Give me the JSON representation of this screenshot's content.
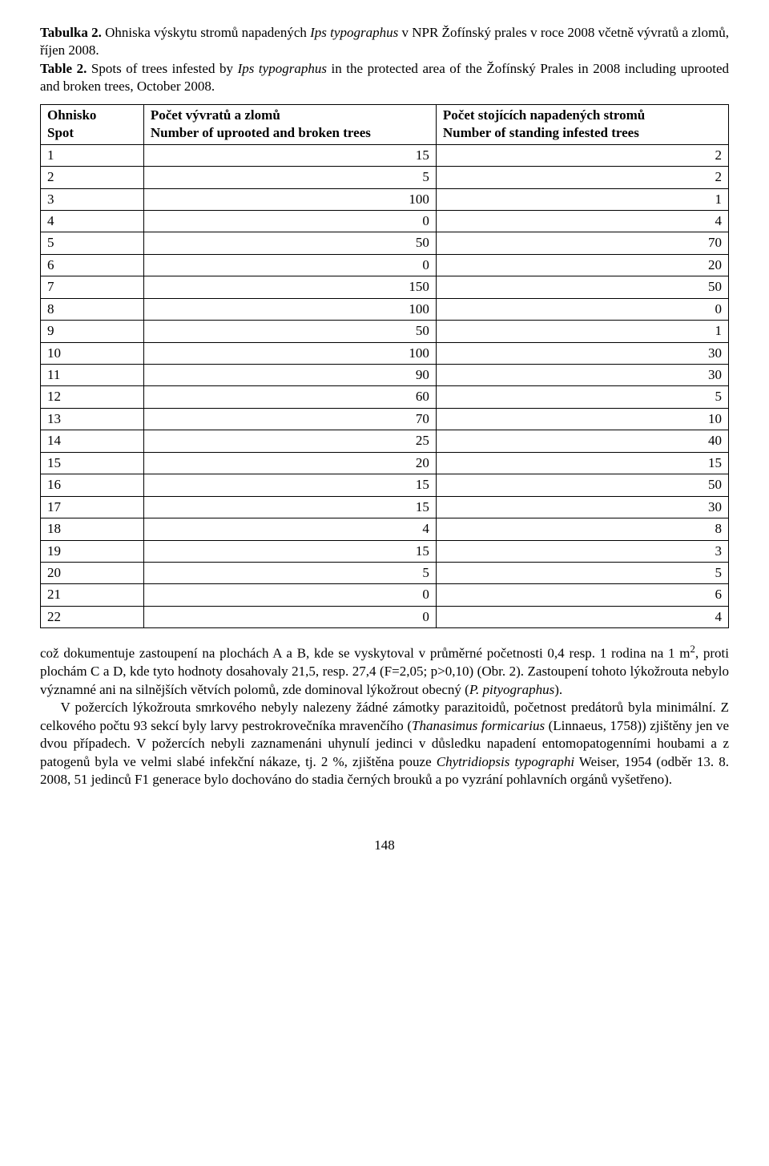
{
  "caption": {
    "cz_label": "Tabulka 2.",
    "cz_text_before_ital": " Ohniska výskytu stromů napadených ",
    "cz_ital": "Ips typographus",
    "cz_text_after_ital": " v NPR Žofínský prales v roce 2008 včetně vývratů a zlomů, říjen 2008.",
    "en_label": "Table 2.",
    "en_text_before_ital": " Spots of trees infested by ",
    "en_ital": "Ips typographus",
    "en_text_after_ital": " in the protected area of the Žofínský Prales in 2008 including uprooted and broken trees, October 2008."
  },
  "table": {
    "headers": {
      "col0_line1": "Ohnisko",
      "col0_line2": "Spot",
      "col1_line1": "Počet vývratů a zlomů",
      "col1_line2": "Number of uprooted and broken trees",
      "col2_line1": "Počet stojících napadených stromů",
      "col2_line2": "Number of standing infested trees"
    },
    "rows": [
      [
        "1",
        "15",
        "2"
      ],
      [
        "2",
        "5",
        "2"
      ],
      [
        "3",
        "100",
        "1"
      ],
      [
        "4",
        "0",
        "4"
      ],
      [
        "5",
        "50",
        "70"
      ],
      [
        "6",
        "0",
        "20"
      ],
      [
        "7",
        "150",
        "50"
      ],
      [
        "8",
        "100",
        "0"
      ],
      [
        "9",
        "50",
        "1"
      ],
      [
        "10",
        "100",
        "30"
      ],
      [
        "11",
        "90",
        "30"
      ],
      [
        "12",
        "60",
        "5"
      ],
      [
        "13",
        "70",
        "10"
      ],
      [
        "14",
        "25",
        "40"
      ],
      [
        "15",
        "20",
        "15"
      ],
      [
        "16",
        "15",
        "50"
      ],
      [
        "17",
        "15",
        "30"
      ],
      [
        "18",
        "4",
        "8"
      ],
      [
        "19",
        "15",
        "3"
      ],
      [
        "20",
        "5",
        "5"
      ],
      [
        "21",
        "0",
        "6"
      ],
      [
        "22",
        "0",
        "4"
      ]
    ]
  },
  "body": {
    "p1_a": "což dokumentuje zastoupení na plochách A a B, kde se vyskytoval v průměrné početnosti 0,4 resp. 1 rodina na 1 m",
    "p1_sup": "2",
    "p1_b": ", proti plochám C a D, kde tyto hodnoty dosahovaly 21,5, resp. 27,4 (F=2,05; p>0,10) (Obr. 2). Zastoupení tohoto lýkožrouta nebylo významné ani na silnějších větvích polomů, zde dominoval lýkožrout obecný (",
    "p1_ital1": "P. pityographus",
    "p1_c": ").",
    "p2_a": "V požercích lýkožrouta smrkového nebyly nalezeny žádné zámotky parazitoidů, počet­nost predátorů byla minimální. Z celkového počtu 93 sekcí byly larvy pestrokrovečníka mravenčího (",
    "p2_ital1": "Thanasimus formicarius",
    "p2_b": " (Linnaeus, 1758)) zjištěny jen ve dvou případech. V požercích nebyli zaznamenáni uhynulí jedinci v důsledku napadení entomopatogenními houbami a z patogenů byla ve velmi slabé infekční nákaze, tj. 2 %, zjištěna pouze ",
    "p2_ital2": "Chytridi­opsis typographi",
    "p2_c": " Weiser, 1954 (odběr 13. 8. 2008, 51 jedinců F1 generace bylo dochováno do stadia černých brouků a po vyzrání pohlavních orgánů vyšetřeno)."
  },
  "pagenum": "148"
}
